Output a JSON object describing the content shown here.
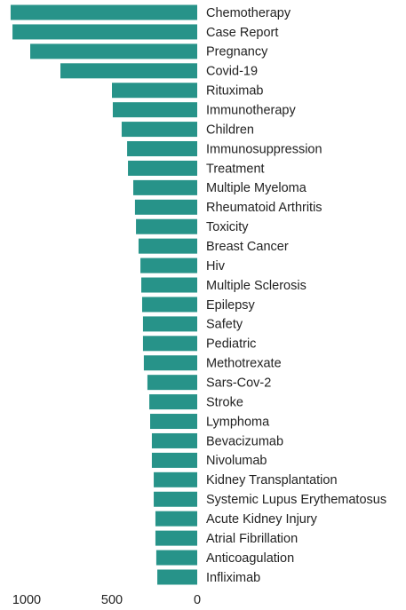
{
  "chart_data": {
    "type": "bar",
    "orientation": "horizontal",
    "color": "#279389",
    "categories": [
      "Chemotherapy",
      "Case Report",
      "Pregnancy",
      "Covid-19",
      "Rituximab",
      "Immunotherapy",
      "Children",
      "Immunosuppression",
      "Treatment",
      "Multiple Myeloma",
      "Rheumatoid Arthritis",
      "Toxicity",
      "Breast Cancer",
      "Hiv",
      "Multiple Sclerosis",
      "Epilepsy",
      "Safety",
      "Pediatric",
      "Methotrexate",
      "Sars-Cov-2",
      "Stroke",
      "Lymphoma",
      "Bevacizumab",
      "Nivolumab",
      "Kidney Transplantation",
      "Systemic Lupus Erythematosus",
      "Acute Kidney Injury",
      "Atrial Fibrillation",
      "Anticoagulation",
      "Infliximab"
    ],
    "values": [
      1094,
      1083,
      979,
      802,
      500,
      495,
      443,
      411,
      406,
      375,
      365,
      359,
      344,
      333,
      328,
      323,
      318,
      318,
      313,
      292,
      281,
      276,
      266,
      266,
      255,
      255,
      245,
      245,
      240,
      234
    ],
    "xlim": [
      1100,
      0
    ],
    "xticks": [
      1000,
      500,
      0
    ]
  }
}
